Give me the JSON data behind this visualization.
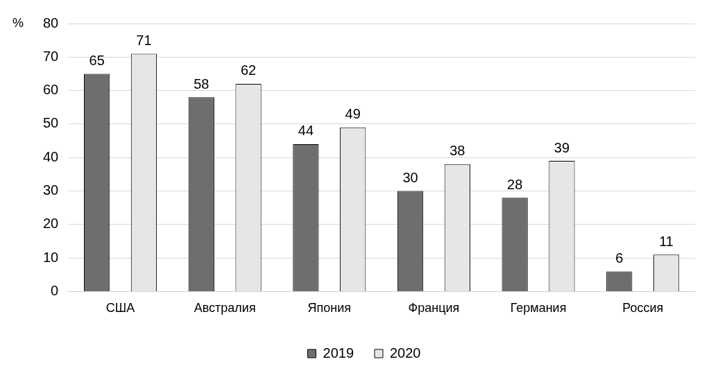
{
  "chart_data": {
    "type": "bar",
    "ylabel": "%",
    "categories": [
      "США",
      "Австралия",
      "Япония",
      "Франция",
      "Германия",
      "Россия"
    ],
    "series": [
      {
        "name": "2019",
        "color": "#6e6e6e",
        "values": [
          65,
          58,
          44,
          30,
          28,
          6
        ]
      },
      {
        "name": "2020",
        "color": "#e6e6e6",
        "values": [
          71,
          62,
          49,
          38,
          39,
          11
        ]
      }
    ],
    "ylim": [
      0,
      80
    ],
    "yticks": [
      0,
      10,
      20,
      30,
      40,
      50,
      60,
      70,
      80
    ],
    "grid": "y",
    "legend": "bottom",
    "data_labels": true
  }
}
